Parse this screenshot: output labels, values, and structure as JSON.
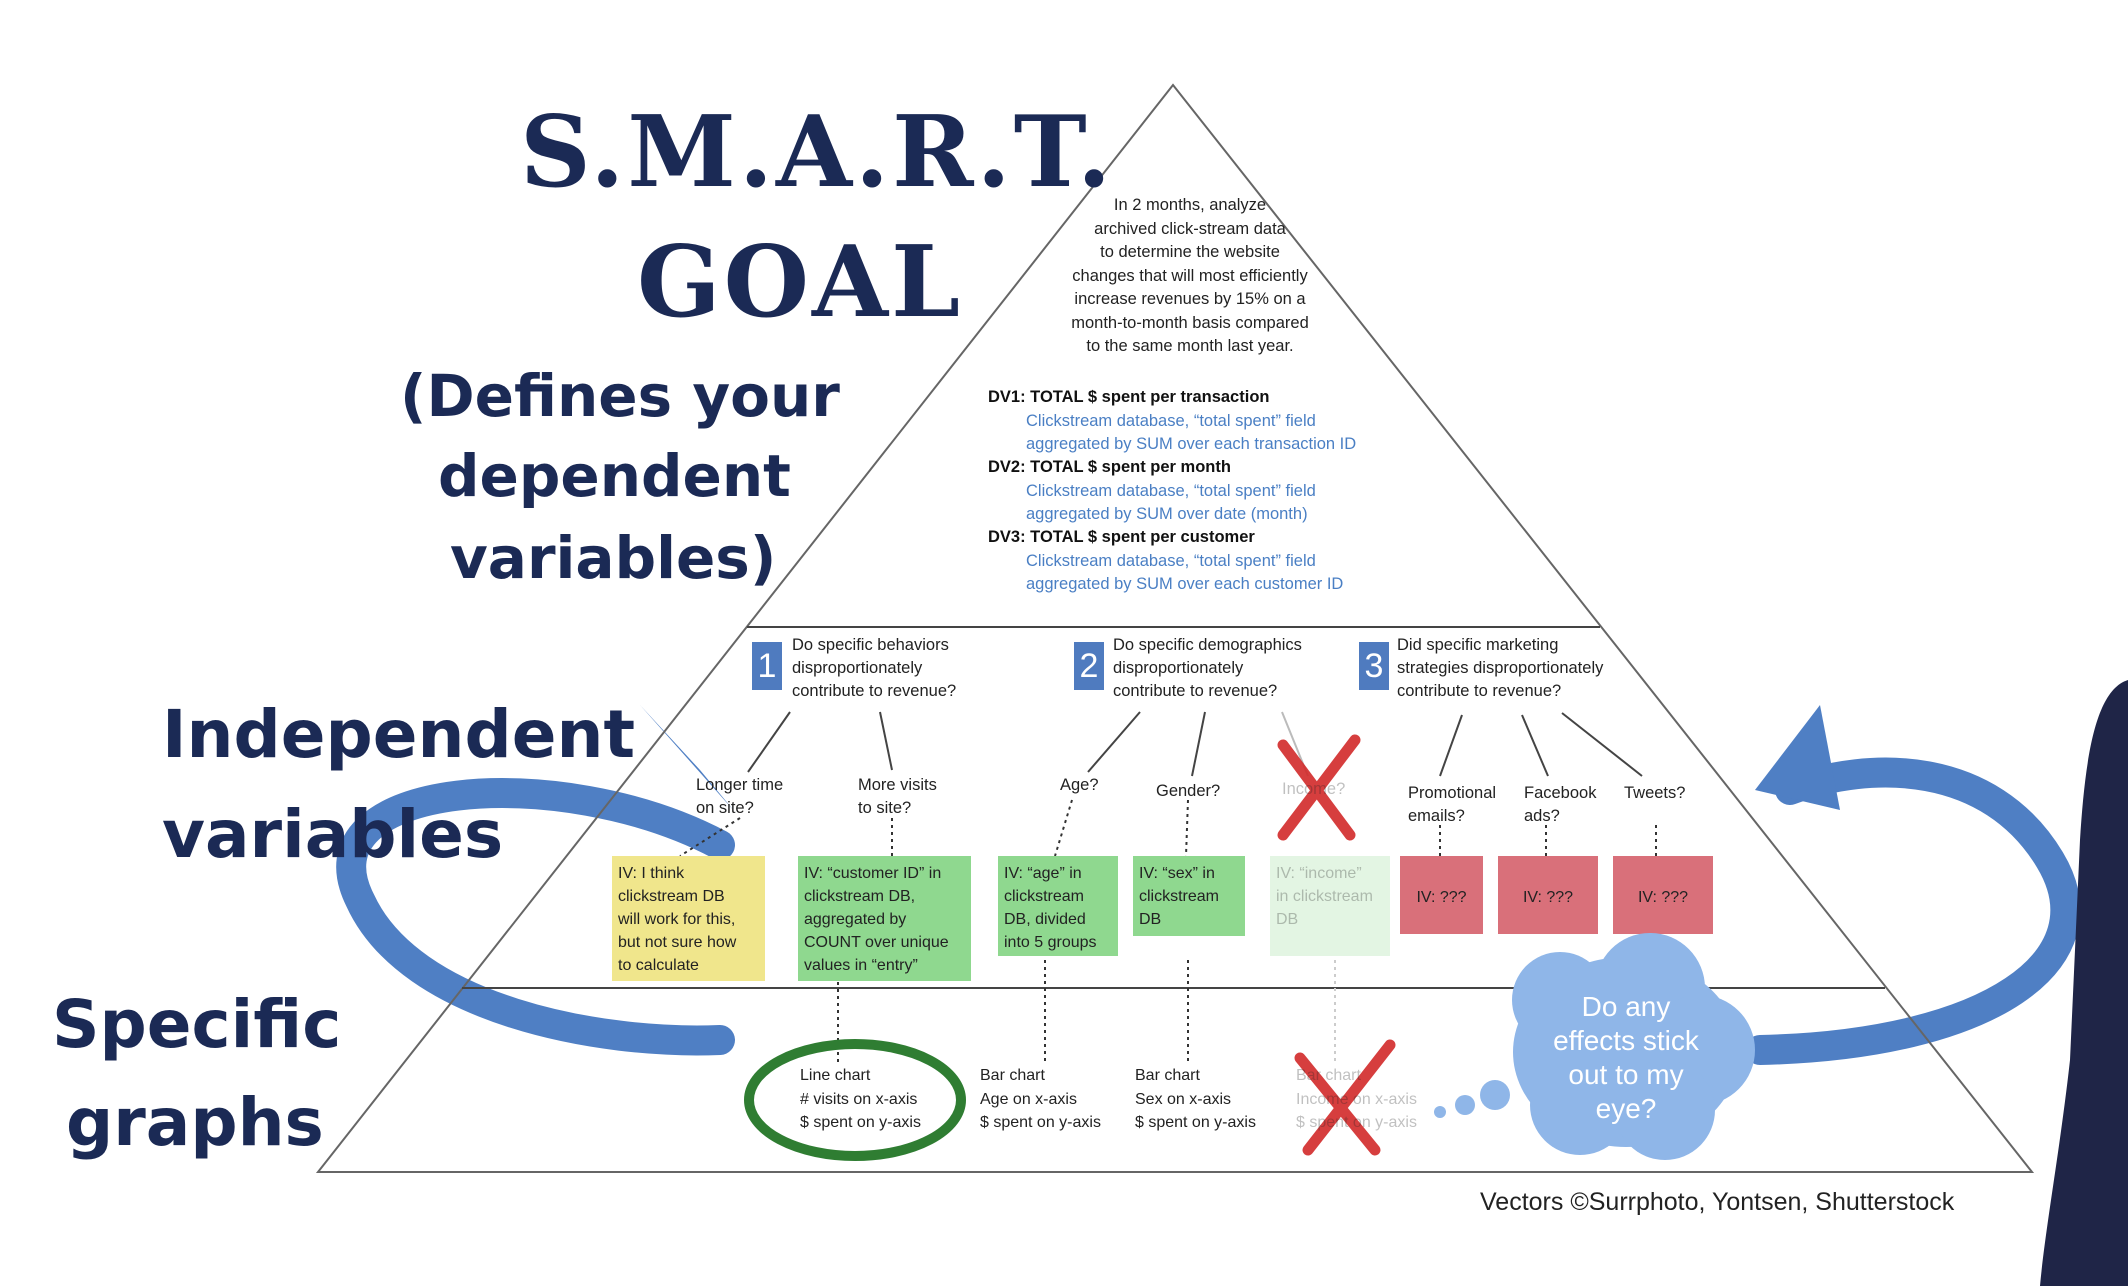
{
  "title": {
    "line1": "S.M.A.R.T.",
    "line2": "GOAL"
  },
  "subtitle": {
    "line1": "(Defines your",
    "line2": "dependent",
    "line3": "variables)"
  },
  "side_labels": {
    "independent_line1": "Independent",
    "independent_line2": "variables",
    "graphs_line1": "Specific",
    "graphs_line2": "graphs"
  },
  "goal": {
    "lines": [
      "In 2 months, analyze",
      "archived click-stream data",
      "to determine the website",
      "changes that will most efficiently",
      "increase revenues by 15% on a",
      "month-to-month basis compared",
      "to the same month last year."
    ]
  },
  "dependent_vars": [
    {
      "head": "DV1: TOTAL $ spent per transaction",
      "detail1": "Clickstream database, “total spent” field",
      "detail2": "aggregated by SUM over each transaction ID"
    },
    {
      "head": "DV2: TOTAL $ spent per month",
      "detail1": "Clickstream database, “total spent” field",
      "detail2": "aggregated by SUM over date (month)"
    },
    {
      "head": "DV3: TOTAL $ spent per customer",
      "detail1": "Clickstream database, “total spent” field",
      "detail2": "aggregated by SUM over each customer ID"
    }
  ],
  "questions": [
    {
      "num": "1",
      "line1": "Do specific behaviors",
      "line2": "disproportionately",
      "line3": "contribute to revenue?"
    },
    {
      "num": "2",
      "line1": "Do specific demographics",
      "line2": "disproportionately",
      "line3": "contribute to revenue?"
    },
    {
      "num": "3",
      "line1": "Did  specific marketing",
      "line2": "strategies disproportionately",
      "line3": "contribute to revenue?"
    }
  ],
  "sub_questions": [
    {
      "line1": "Longer time",
      "line2": "on site?"
    },
    {
      "line1": "More visits",
      "line2": "to site?"
    },
    {
      "line1": "Age?",
      "line2": ""
    },
    {
      "line1": "Gender?",
      "line2": ""
    },
    {
      "line1": "Income?",
      "line2": ""
    },
    {
      "line1": "Promotional",
      "line2": "emails?"
    },
    {
      "line1": "Facebook",
      "line2": "ads?"
    },
    {
      "line1": "Tweets?",
      "line2": ""
    }
  ],
  "iv_boxes": [
    {
      "lines": [
        "IV: I think",
        "clickstream DB",
        "will work for this,",
        "but not sure how",
        "to calculate"
      ],
      "color": "#f0e68c"
    },
    {
      "lines": [
        "IV: “customer ID” in",
        "clickstream DB,",
        "aggregated by",
        "COUNT over unique",
        "values in “entry”"
      ],
      "color": "#8fd88f"
    },
    {
      "lines": [
        "IV: “age” in",
        "clickstream",
        "DB, divided",
        "into 5 groups"
      ],
      "color": "#8fd88f"
    },
    {
      "lines": [
        "IV: “sex” in",
        "clickstream",
        "DB"
      ],
      "color": "#8fd88f"
    },
    {
      "lines": [
        "IV: “income”",
        "in clickstream",
        "DB"
      ],
      "color": "#8fd88f"
    },
    {
      "lines": [
        "IV: ???"
      ],
      "color": "#d9707a"
    },
    {
      "lines": [
        "IV: ???"
      ],
      "color": "#d9707a"
    },
    {
      "lines": [
        "IV: ???"
      ],
      "color": "#d9707a"
    }
  ],
  "graphs": [
    {
      "line1": "Line chart",
      "line2": "# visits on x-axis",
      "line3": "$ spent on y-axis"
    },
    {
      "line1": "Bar chart",
      "line2": "Age on x-axis",
      "line3": "$ spent on y-axis"
    },
    {
      "line1": "Bar chart",
      "line2": "Sex on x-axis",
      "line3": "$ spent on y-axis"
    },
    {
      "line1": "Bar chart",
      "line2": "Income on x-axis",
      "line3": "$ spent on y-axis"
    }
  ],
  "thought_bubble": {
    "line1": "Do any",
    "line2": "effects stick",
    "line3": "out to my",
    "line4": "eye?"
  },
  "credit": "Vectors ©Surrphoto, Yontsen, Shutterstock",
  "colors": {
    "navy": "#1b2a55",
    "arrow_blue": "#4f7fc4",
    "red_x": "#d22a2a",
    "green_circle": "#2f7d32",
    "link_blue": "#4a7fc4"
  }
}
